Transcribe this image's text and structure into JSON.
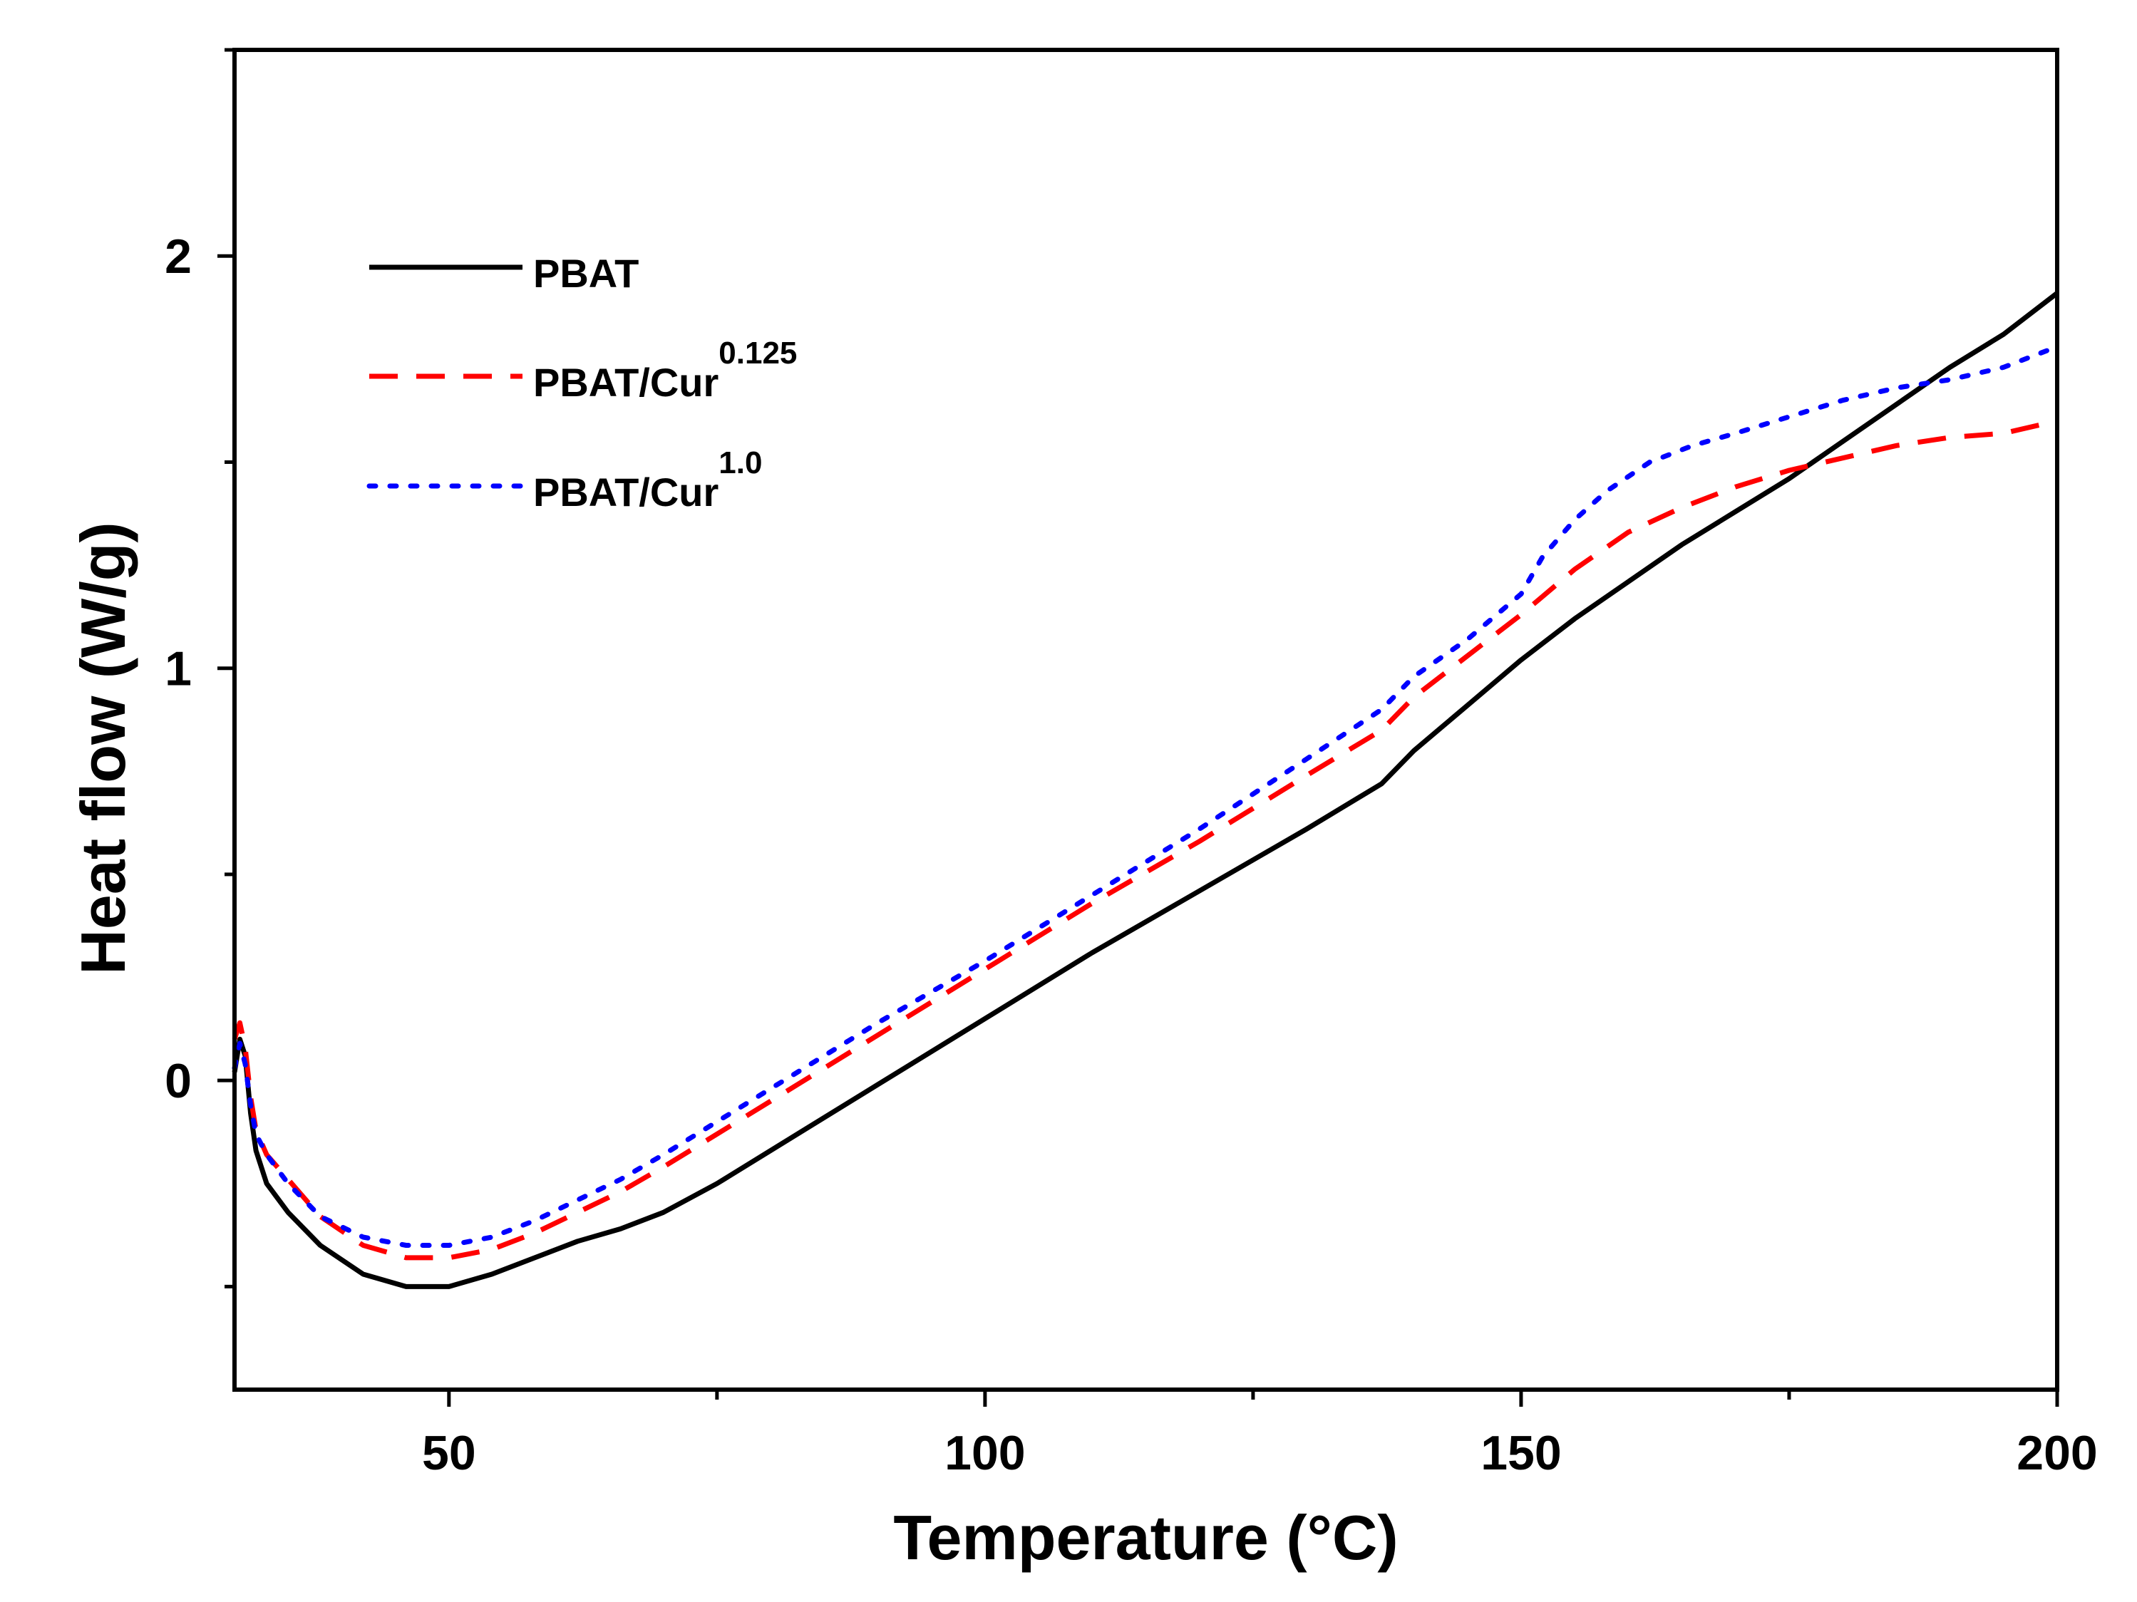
{
  "chart_data": {
    "type": "line",
    "title": "",
    "xlabel": "Temperature (°C)",
    "ylabel": "Heat flow (W/g)",
    "xlim": [
      30,
      200
    ],
    "ylim": [
      -0.75,
      2.5
    ],
    "xticks": [
      50,
      100,
      150,
      200
    ],
    "xtick_labels": [
      "50",
      "100",
      "150",
      "200"
    ],
    "xminor": [
      75,
      125,
      175
    ],
    "yticks": [
      0,
      1,
      2
    ],
    "ytick_labels": [
      "0",
      "1",
      "2"
    ],
    "yminor": [
      -0.5,
      0.5,
      1.5,
      2.5
    ],
    "legend_position": "top-left",
    "series": [
      {
        "name": "PBAT",
        "legend_main": "PBAT",
        "legend_sup": "",
        "color": "#000000",
        "style": "solid",
        "x": [
          30,
          30.5,
          31,
          31.5,
          32,
          33,
          35,
          38,
          42,
          46,
          50,
          54,
          58,
          62,
          66,
          70,
          75,
          80,
          90,
          100,
          110,
          120,
          126,
          130,
          137,
          140,
          145,
          150,
          155,
          160,
          165,
          170,
          175,
          180,
          185,
          190,
          195,
          200
        ],
        "y": [
          0.02,
          0.1,
          0.06,
          -0.08,
          -0.17,
          -0.25,
          -0.32,
          -0.4,
          -0.47,
          -0.5,
          -0.5,
          -0.47,
          -0.43,
          -0.39,
          -0.36,
          -0.32,
          -0.25,
          -0.17,
          -0.01,
          0.15,
          0.31,
          0.46,
          0.55,
          0.61,
          0.72,
          0.8,
          0.91,
          1.02,
          1.12,
          1.21,
          1.3,
          1.38,
          1.46,
          1.55,
          1.64,
          1.73,
          1.81,
          1.91
        ]
      },
      {
        "name": "PBAT/Cur0.125",
        "legend_main": "PBAT/Cur",
        "legend_sup": "0.125",
        "color": "#ff0000",
        "style": "dashed",
        "x": [
          30,
          30.5,
          31,
          31.5,
          32,
          33,
          35,
          38,
          42,
          46,
          50,
          54,
          58,
          62,
          66,
          70,
          75,
          80,
          90,
          100,
          110,
          120,
          130,
          137,
          140,
          145,
          150,
          155,
          160,
          165,
          170,
          175,
          180,
          185,
          190,
          195,
          200
        ],
        "y": [
          0.1,
          0.14,
          0.08,
          -0.04,
          -0.12,
          -0.18,
          -0.24,
          -0.33,
          -0.4,
          -0.43,
          -0.43,
          -0.41,
          -0.37,
          -0.32,
          -0.27,
          -0.21,
          -0.13,
          -0.05,
          0.11,
          0.27,
          0.43,
          0.58,
          0.74,
          0.85,
          0.93,
          1.03,
          1.13,
          1.24,
          1.33,
          1.39,
          1.44,
          1.48,
          1.51,
          1.54,
          1.56,
          1.57,
          1.6
        ]
      },
      {
        "name": "PBAT/Cur1.0",
        "legend_main": "PBAT/Cur",
        "legend_sup": "1.0",
        "color": "#0000ff",
        "style": "dotted",
        "x": [
          30,
          30.5,
          31,
          31.5,
          32,
          33,
          35,
          38,
          42,
          46,
          50,
          54,
          58,
          62,
          66,
          70,
          75,
          80,
          90,
          100,
          110,
          120,
          130,
          137,
          140,
          145,
          150,
          152,
          155,
          158,
          162,
          166,
          170,
          175,
          180,
          185,
          190,
          195,
          200
        ],
        "y": [
          0.03,
          0.09,
          0.04,
          -0.06,
          -0.13,
          -0.18,
          -0.25,
          -0.33,
          -0.38,
          -0.4,
          -0.4,
          -0.38,
          -0.34,
          -0.29,
          -0.24,
          -0.18,
          -0.1,
          -0.02,
          0.14,
          0.29,
          0.45,
          0.61,
          0.78,
          0.9,
          0.98,
          1.07,
          1.18,
          1.27,
          1.36,
          1.43,
          1.5,
          1.54,
          1.57,
          1.61,
          1.65,
          1.68,
          1.7,
          1.73,
          1.78
        ]
      }
    ]
  }
}
